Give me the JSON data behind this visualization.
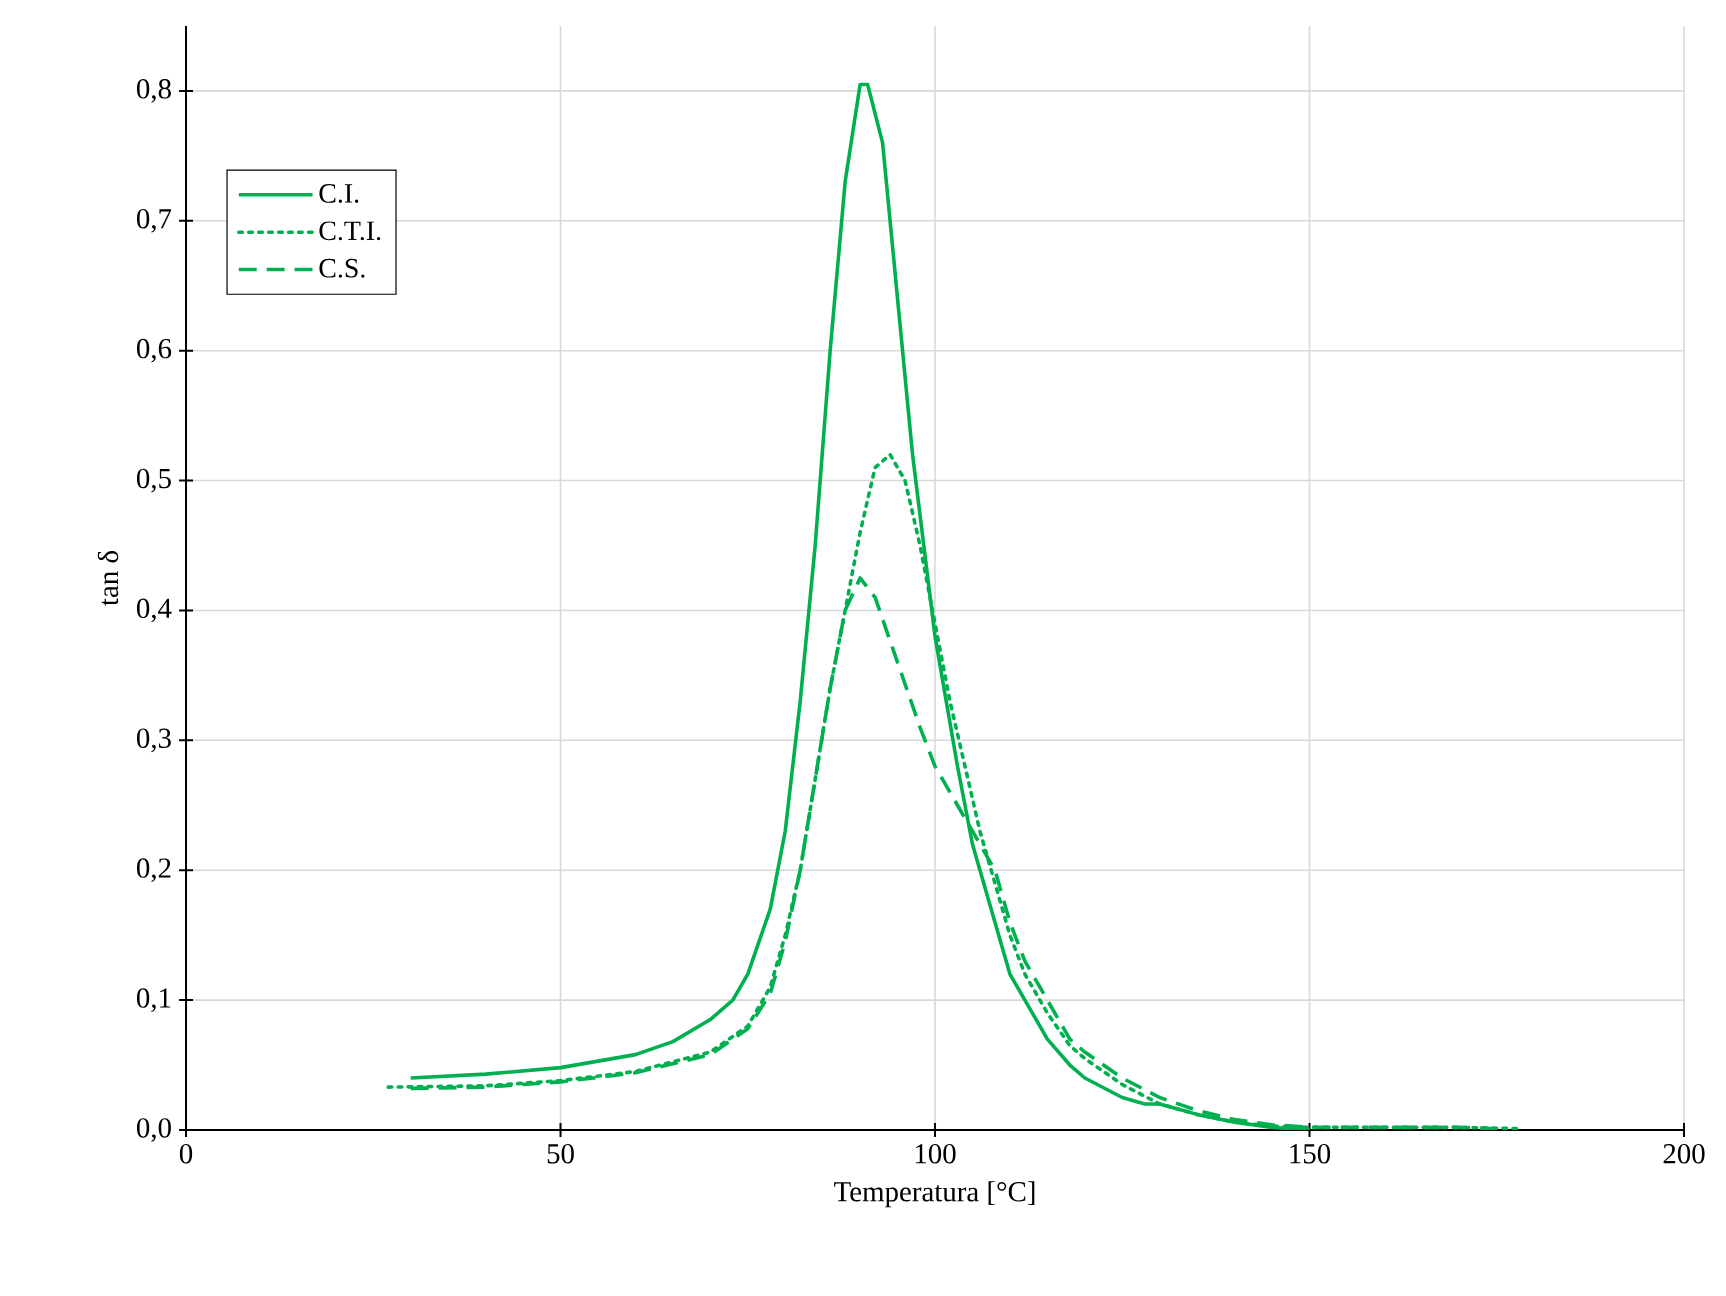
{
  "chart_data": {
    "type": "line",
    "xlabel": "Temperatura [°C]",
    "ylabel": "tan δ",
    "xlim": [
      0,
      200
    ],
    "xticks": [
      0,
      50,
      100,
      150,
      200
    ],
    "ylim": [
      0,
      0.85
    ],
    "yticks": [
      {
        "value": 0,
        "label": "0,0"
      },
      {
        "value": 0.1,
        "label": "0,1"
      },
      {
        "value": 0.2,
        "label": "0,2"
      },
      {
        "value": 0.3,
        "label": "0,3"
      },
      {
        "value": 0.4,
        "label": "0,4"
      },
      {
        "value": 0.5,
        "label": "0,5"
      },
      {
        "value": 0.6,
        "label": "0,6"
      },
      {
        "value": 0.7,
        "label": "0,7"
      },
      {
        "value": 0.8,
        "label": "0,8"
      }
    ],
    "grid": true,
    "legend": "top left",
    "marker": "none",
    "series": [
      {
        "name": "C.I.",
        "color": "#00b050",
        "line_style": "solid",
        "x": [
          30,
          40,
          50,
          60,
          65,
          70,
          73,
          75,
          78,
          80,
          82,
          84,
          86,
          88,
          90,
          91,
          93,
          95,
          97,
          100,
          103,
          105,
          108,
          110,
          112,
          115,
          118,
          120,
          125,
          128,
          130,
          135,
          140,
          145,
          150
        ],
        "values": [
          0.04,
          0.043,
          0.048,
          0.058,
          0.068,
          0.085,
          0.1,
          0.12,
          0.17,
          0.23,
          0.33,
          0.45,
          0.6,
          0.73,
          0.805,
          0.805,
          0.76,
          0.64,
          0.52,
          0.38,
          0.28,
          0.22,
          0.16,
          0.12,
          0.1,
          0.07,
          0.05,
          0.04,
          0.025,
          0.02,
          0.02,
          0.012,
          0.006,
          0.002,
          0.0
        ]
      },
      {
        "name": "C.T.I.",
        "color": "#00b050",
        "line_style": "dotted",
        "x": [
          27,
          40,
          50,
          60,
          70,
          75,
          78,
          80,
          82,
          84,
          86,
          88,
          90,
          92,
          94,
          96,
          98,
          100,
          102,
          104,
          106,
          108,
          110,
          112,
          115,
          118,
          120,
          125,
          130,
          135,
          140,
          145,
          150,
          160,
          170,
          178
        ],
        "values": [
          0.033,
          0.034,
          0.038,
          0.045,
          0.06,
          0.08,
          0.11,
          0.15,
          0.2,
          0.27,
          0.34,
          0.4,
          0.46,
          0.51,
          0.52,
          0.5,
          0.45,
          0.39,
          0.33,
          0.28,
          0.23,
          0.19,
          0.15,
          0.12,
          0.09,
          0.065,
          0.055,
          0.035,
          0.02,
          0.012,
          0.006,
          0.003,
          0.002,
          0.002,
          0.002,
          0.001
        ]
      },
      {
        "name": "C.S.",
        "color": "#00b050",
        "line_style": "dashed",
        "x": [
          30,
          40,
          50,
          60,
          70,
          75,
          78,
          80,
          82,
          84,
          86,
          88,
          90,
          92,
          95,
          98,
          100,
          103,
          105,
          108,
          110,
          112,
          115,
          118,
          120,
          125,
          130,
          135,
          140,
          145,
          150,
          160,
          170,
          175
        ],
        "values": [
          0.032,
          0.033,
          0.037,
          0.044,
          0.058,
          0.078,
          0.105,
          0.145,
          0.2,
          0.27,
          0.34,
          0.4,
          0.425,
          0.41,
          0.36,
          0.31,
          0.28,
          0.25,
          0.23,
          0.2,
          0.16,
          0.13,
          0.1,
          0.07,
          0.06,
          0.04,
          0.025,
          0.015,
          0.008,
          0.004,
          0.002,
          0.002,
          0.002,
          0.001
        ]
      }
    ]
  }
}
